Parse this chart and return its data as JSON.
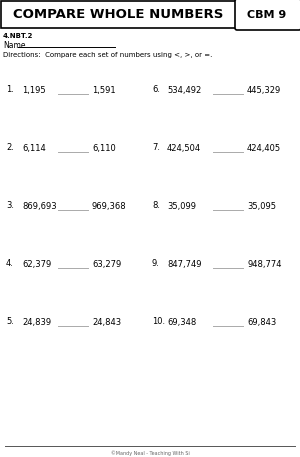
{
  "title": "COMPARE WHOLE NUMBERS",
  "cbm_label": "CBM 9",
  "standard": "4.NBT.2",
  "name_label": "Name",
  "directions": "Directions:  Compare each set of numbers using <, >, or =.",
  "problems_left": [
    {
      "num": "1.",
      "a": "1,195",
      "b": "1,591"
    },
    {
      "num": "2.",
      "a": "6,114",
      "b": "6,110"
    },
    {
      "num": "3.",
      "a": "869,693",
      "b": "969,368"
    },
    {
      "num": "4.",
      "a": "62,379",
      "b": "63,279"
    },
    {
      "num": "5.",
      "a": "24,839",
      "b": "24,843"
    }
  ],
  "problems_right": [
    {
      "num": "6.",
      "a": "534,492",
      "b": "445,329"
    },
    {
      "num": "7.",
      "a": "424,504",
      "b": "424,405"
    },
    {
      "num": "8.",
      "a": "35,099",
      "b": "35,095"
    },
    {
      "num": "9.",
      "a": "847,749",
      "b": "948,774"
    },
    {
      "num": "10.",
      "a": "69,348",
      "b": "69,843"
    }
  ],
  "footer": "©Mandy Neal - Teaching With Si",
  "bg_color": "#ffffff",
  "text_color": "#000000",
  "line_color": "#aaaaaa",
  "header_font_size": 9.5,
  "cbm_font_size": 8,
  "problem_font_size": 6,
  "standard_font_size": 5,
  "name_font_size": 5.5,
  "directions_font_size": 5,
  "footer_font_size": 3.5
}
